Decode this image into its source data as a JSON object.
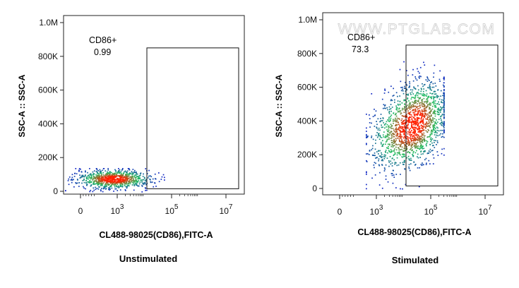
{
  "watermark": "WWW.PTGLAB.COM",
  "chart_data": [
    {
      "type": "scatter",
      "caption": "Unstimulated",
      "xlabel": "CL488-98025(CD86),FITC-A",
      "ylabel": "SSC-A :: SSC-A",
      "x_scale": "biexponential",
      "x_ticks": [
        {
          "base": "0",
          "exp": ""
        },
        {
          "base": "10",
          "exp": "3"
        },
        {
          "base": "10",
          "exp": "5"
        },
        {
          "base": "10",
          "exp": "7"
        }
      ],
      "y_ticks": [
        "0",
        "200K",
        "400K",
        "600K",
        "800K",
        "1.0M"
      ],
      "y_tick_values": [
        0,
        200000,
        400000,
        600000,
        800000,
        1000000
      ],
      "ylim": [
        0,
        1050000
      ],
      "gate": {
        "name": "CD86+",
        "percent": "0.99",
        "x_min_decade": 3.5,
        "x_max_decade": 6.9,
        "y_min": 15000,
        "y_max": 850000
      },
      "population": {
        "center_decade": 2.2,
        "spread_decade": 0.9,
        "center_ssc": 75000,
        "spread_ssc": 28000,
        "positive_fraction": 0.0099
      },
      "colors": {
        "low": "#1020c8",
        "mid": "#20c060",
        "high": "#ff2000"
      }
    },
    {
      "type": "scatter",
      "caption": "Stimulated",
      "xlabel": "CL488-98025(CD86),FITC-A",
      "ylabel": "SSC-A :: SSC-A",
      "x_scale": "biexponential",
      "x_ticks": [
        {
          "base": "0",
          "exp": ""
        },
        {
          "base": "10",
          "exp": "3"
        },
        {
          "base": "10",
          "exp": "5"
        },
        {
          "base": "10",
          "exp": "7"
        }
      ],
      "y_ticks": [
        "0",
        "200K",
        "400K",
        "600K",
        "800K",
        "1.0M"
      ],
      "y_tick_values": [
        0,
        200000,
        400000,
        600000,
        800000,
        1000000
      ],
      "ylim": [
        0,
        1050000
      ],
      "gate": {
        "name": "CD86+",
        "percent": "73.3",
        "x_min_decade": 3.5,
        "x_max_decade": 6.9,
        "y_min": 15000,
        "y_max": 850000
      },
      "population": {
        "center_decade": 3.9,
        "spread_decade": 0.55,
        "center_ssc": 380000,
        "spread_ssc": 120000,
        "positive_fraction": 0.733
      },
      "colors": {
        "low": "#1020c8",
        "mid": "#20c060",
        "high": "#ff2000"
      }
    }
  ]
}
